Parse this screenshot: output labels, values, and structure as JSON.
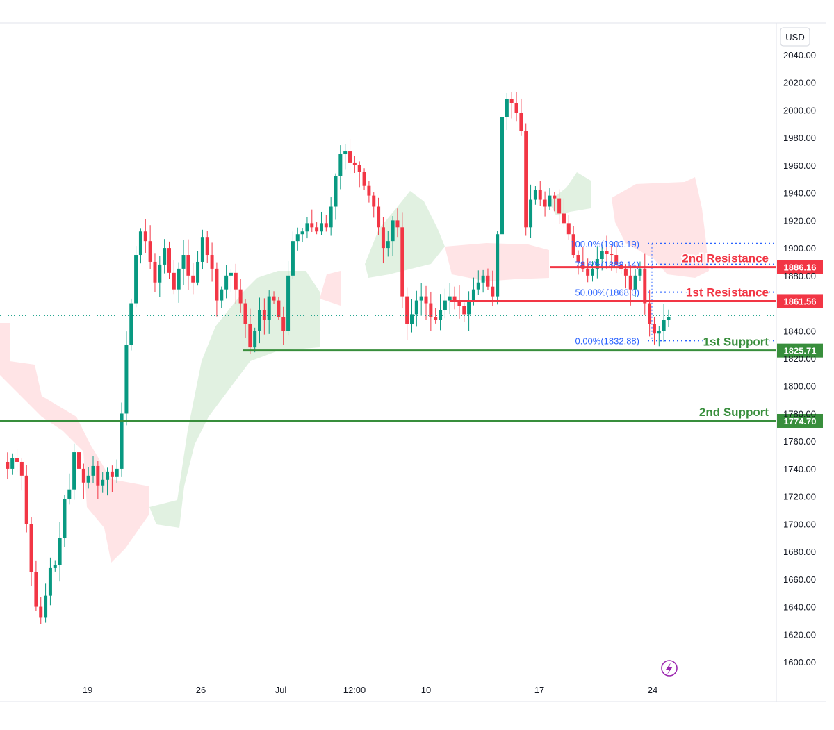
{
  "chart_data": {
    "type": "candlestick",
    "currency": "USD",
    "y_ticks": [
      2040,
      2020,
      2000,
      1980,
      1960,
      1940,
      1920,
      1900,
      1880,
      1840,
      1820,
      1800,
      1780,
      1760,
      1740,
      1720,
      1700,
      1680,
      1660,
      1640,
      1620,
      1600
    ],
    "ylim": [
      1595,
      2045
    ],
    "x_ticks": [
      "19",
      "26",
      "Jul",
      "12:00",
      "10",
      "17",
      "24"
    ],
    "levels": [
      {
        "label": "2nd Resistance",
        "value": 1886.16,
        "value_text": "1886.16",
        "color": "#f23645",
        "kind": "resistance"
      },
      {
        "label": "1st Resistance",
        "value": 1861.56,
        "value_text": "1861.56",
        "color": "#f23645",
        "kind": "resistance"
      },
      {
        "label": "1st Support",
        "value": 1825.71,
        "value_text": "1825.71",
        "color": "#388e3c",
        "kind": "support"
      },
      {
        "label": "2nd Support",
        "value": 1774.7,
        "value_text": "1774.70",
        "color": "#388e3c",
        "kind": "support"
      }
    ],
    "fib_levels": [
      {
        "label": "100.0%(1903.19)",
        "value": 1903.19
      },
      {
        "label": "78.6%(1888.14)",
        "value": 1888.14
      },
      {
        "label": "50.00%(1868.0)",
        "value": 1868.0
      },
      {
        "label": "0.00%(1832.88)",
        "value": 1832.88
      }
    ],
    "current_price": 1851,
    "colors": {
      "up": "#089981",
      "down": "#f23645",
      "cloud_bull": "#c8e6c9",
      "cloud_bear": "#ffcdd2",
      "fib": "#2962ff"
    },
    "price_path": [
      1745,
      1740,
      1748,
      1745,
      1735,
      1700,
      1665,
      1640,
      1632,
      1648,
      1668,
      1670,
      1690,
      1718,
      1725,
      1752,
      1740,
      1730,
      1735,
      1742,
      1728,
      1732,
      1738,
      1734,
      1740,
      1780,
      1830,
      1860,
      1895,
      1912,
      1905,
      1890,
      1875,
      1888,
      1900,
      1882,
      1870,
      1885,
      1895,
      1880,
      1875,
      1890,
      1908,
      1895,
      1885,
      1862,
      1870,
      1880,
      1882,
      1870,
      1860,
      1845,
      1828,
      1840,
      1855,
      1848,
      1865,
      1862,
      1850,
      1840,
      1880,
      1905,
      1910,
      1912,
      1918,
      1915,
      1912,
      1918,
      1915,
      1930,
      1952,
      1968,
      1970,
      1962,
      1960,
      1955,
      1945,
      1938,
      1930,
      1915,
      1900,
      1905,
      1920,
      1915,
      1865,
      1845,
      1852,
      1862,
      1865,
      1860,
      1850,
      1848,
      1855,
      1862,
      1865,
      1862,
      1858,
      1852,
      1862,
      1870,
      1875,
      1880,
      1872,
      1865,
      1910,
      1995,
      2008,
      2005,
      1998,
      1985,
      1915,
      1935,
      1942,
      1935,
      1930,
      1938,
      1936,
      1925,
      1918,
      1910,
      1895,
      1890,
      1885,
      1880,
      1885,
      1892,
      1898,
      1896,
      1895,
      1888,
      1885,
      1880,
      1870,
      1880,
      1885,
      1860,
      1845,
      1838,
      1840,
      1848,
      1850
    ]
  }
}
